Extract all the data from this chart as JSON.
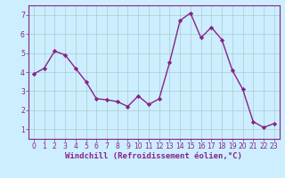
{
  "x": [
    0,
    1,
    2,
    3,
    4,
    5,
    6,
    7,
    8,
    9,
    10,
    11,
    12,
    13,
    14,
    15,
    16,
    17,
    18,
    19,
    20,
    21,
    22,
    23
  ],
  "y": [
    3.9,
    4.2,
    5.1,
    4.9,
    4.2,
    3.5,
    2.6,
    2.55,
    2.45,
    2.2,
    2.75,
    2.3,
    2.6,
    4.5,
    6.7,
    7.1,
    5.8,
    6.35,
    5.7,
    4.1,
    3.1,
    1.4,
    1.1,
    1.3
  ],
  "line_color": "#882288",
  "marker": "D",
  "marker_size": 2.2,
  "bg_color": "#cceeff",
  "grid_color": "#aacccc",
  "xlabel": "Windchill (Refroidissement éolien,°C)",
  "xlabel_color": "#882288",
  "tick_color": "#882288",
  "spine_color": "#882288",
  "ylim": [
    0.5,
    7.5
  ],
  "xlim": [
    -0.5,
    23.5
  ],
  "yticks": [
    1,
    2,
    3,
    4,
    5,
    6,
    7
  ],
  "xticks": [
    0,
    1,
    2,
    3,
    4,
    5,
    6,
    7,
    8,
    9,
    10,
    11,
    12,
    13,
    14,
    15,
    16,
    17,
    18,
    19,
    20,
    21,
    22,
    23
  ],
  "linewidth": 1.0,
  "tick_fontsize": 5.5,
  "xlabel_fontsize": 6.5
}
